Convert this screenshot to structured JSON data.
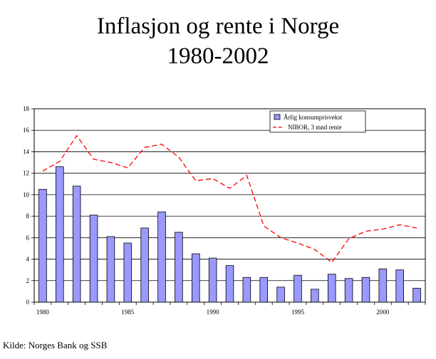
{
  "title_line1": "Inflasjon og rente i Norge",
  "title_line2": "1980-2002",
  "source": "Kilde: Norges Bank og SSB",
  "chart_data": {
    "type": "bar",
    "x": [
      1980,
      1981,
      1982,
      1983,
      1984,
      1985,
      1986,
      1987,
      1988,
      1989,
      1990,
      1991,
      1992,
      1993,
      1994,
      1995,
      1996,
      1997,
      1998,
      1999,
      2000,
      2001,
      2002
    ],
    "x_tick_labels": [
      "1980",
      "1985",
      "1990",
      "1995",
      "2000"
    ],
    "y_tick_labels": [
      "0",
      "2",
      "4",
      "6",
      "8",
      "10",
      "12",
      "14",
      "16",
      "18"
    ],
    "ylim": [
      0,
      18
    ],
    "grid": true,
    "legend_position": "top-right",
    "series": [
      {
        "name": "Årlig konsumprisvekst",
        "type": "bar",
        "color": "#9999ff",
        "values": [
          10.5,
          12.6,
          10.8,
          8.1,
          6.1,
          5.5,
          6.9,
          8.4,
          6.5,
          4.5,
          4.1,
          3.4,
          2.3,
          2.3,
          1.4,
          2.5,
          1.2,
          2.6,
          2.2,
          2.3,
          3.1,
          3.0,
          1.3
        ]
      },
      {
        "name": "NIBOR, 3 mnd rente",
        "type": "line",
        "color": "#ff0000",
        "values": [
          12.2,
          13.1,
          15.5,
          13.3,
          13.0,
          12.5,
          14.4,
          14.7,
          13.5,
          11.3,
          11.5,
          10.6,
          11.8,
          7.1,
          6.0,
          5.5,
          4.9,
          3.7,
          5.9,
          6.6,
          6.8,
          7.2,
          6.9
        ]
      }
    ]
  }
}
